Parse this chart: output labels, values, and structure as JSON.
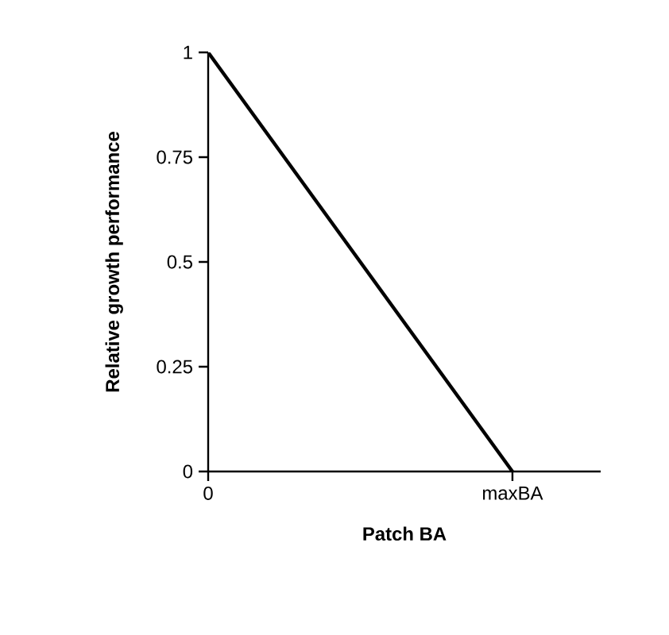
{
  "chart_data": {
    "type": "line",
    "xlabel": "Patch BA",
    "ylabel": "Relative growth performance",
    "categories": [
      "0",
      "maxBA"
    ],
    "series": [
      {
        "color": "#000000",
        "values": [
          1,
          0
        ]
      }
    ],
    "ylim": [
      0,
      1
    ],
    "yticks": [
      0,
      0.25,
      0.5,
      0.75,
      1
    ],
    "grid": false,
    "marker": "none",
    "line_style": "solid"
  }
}
